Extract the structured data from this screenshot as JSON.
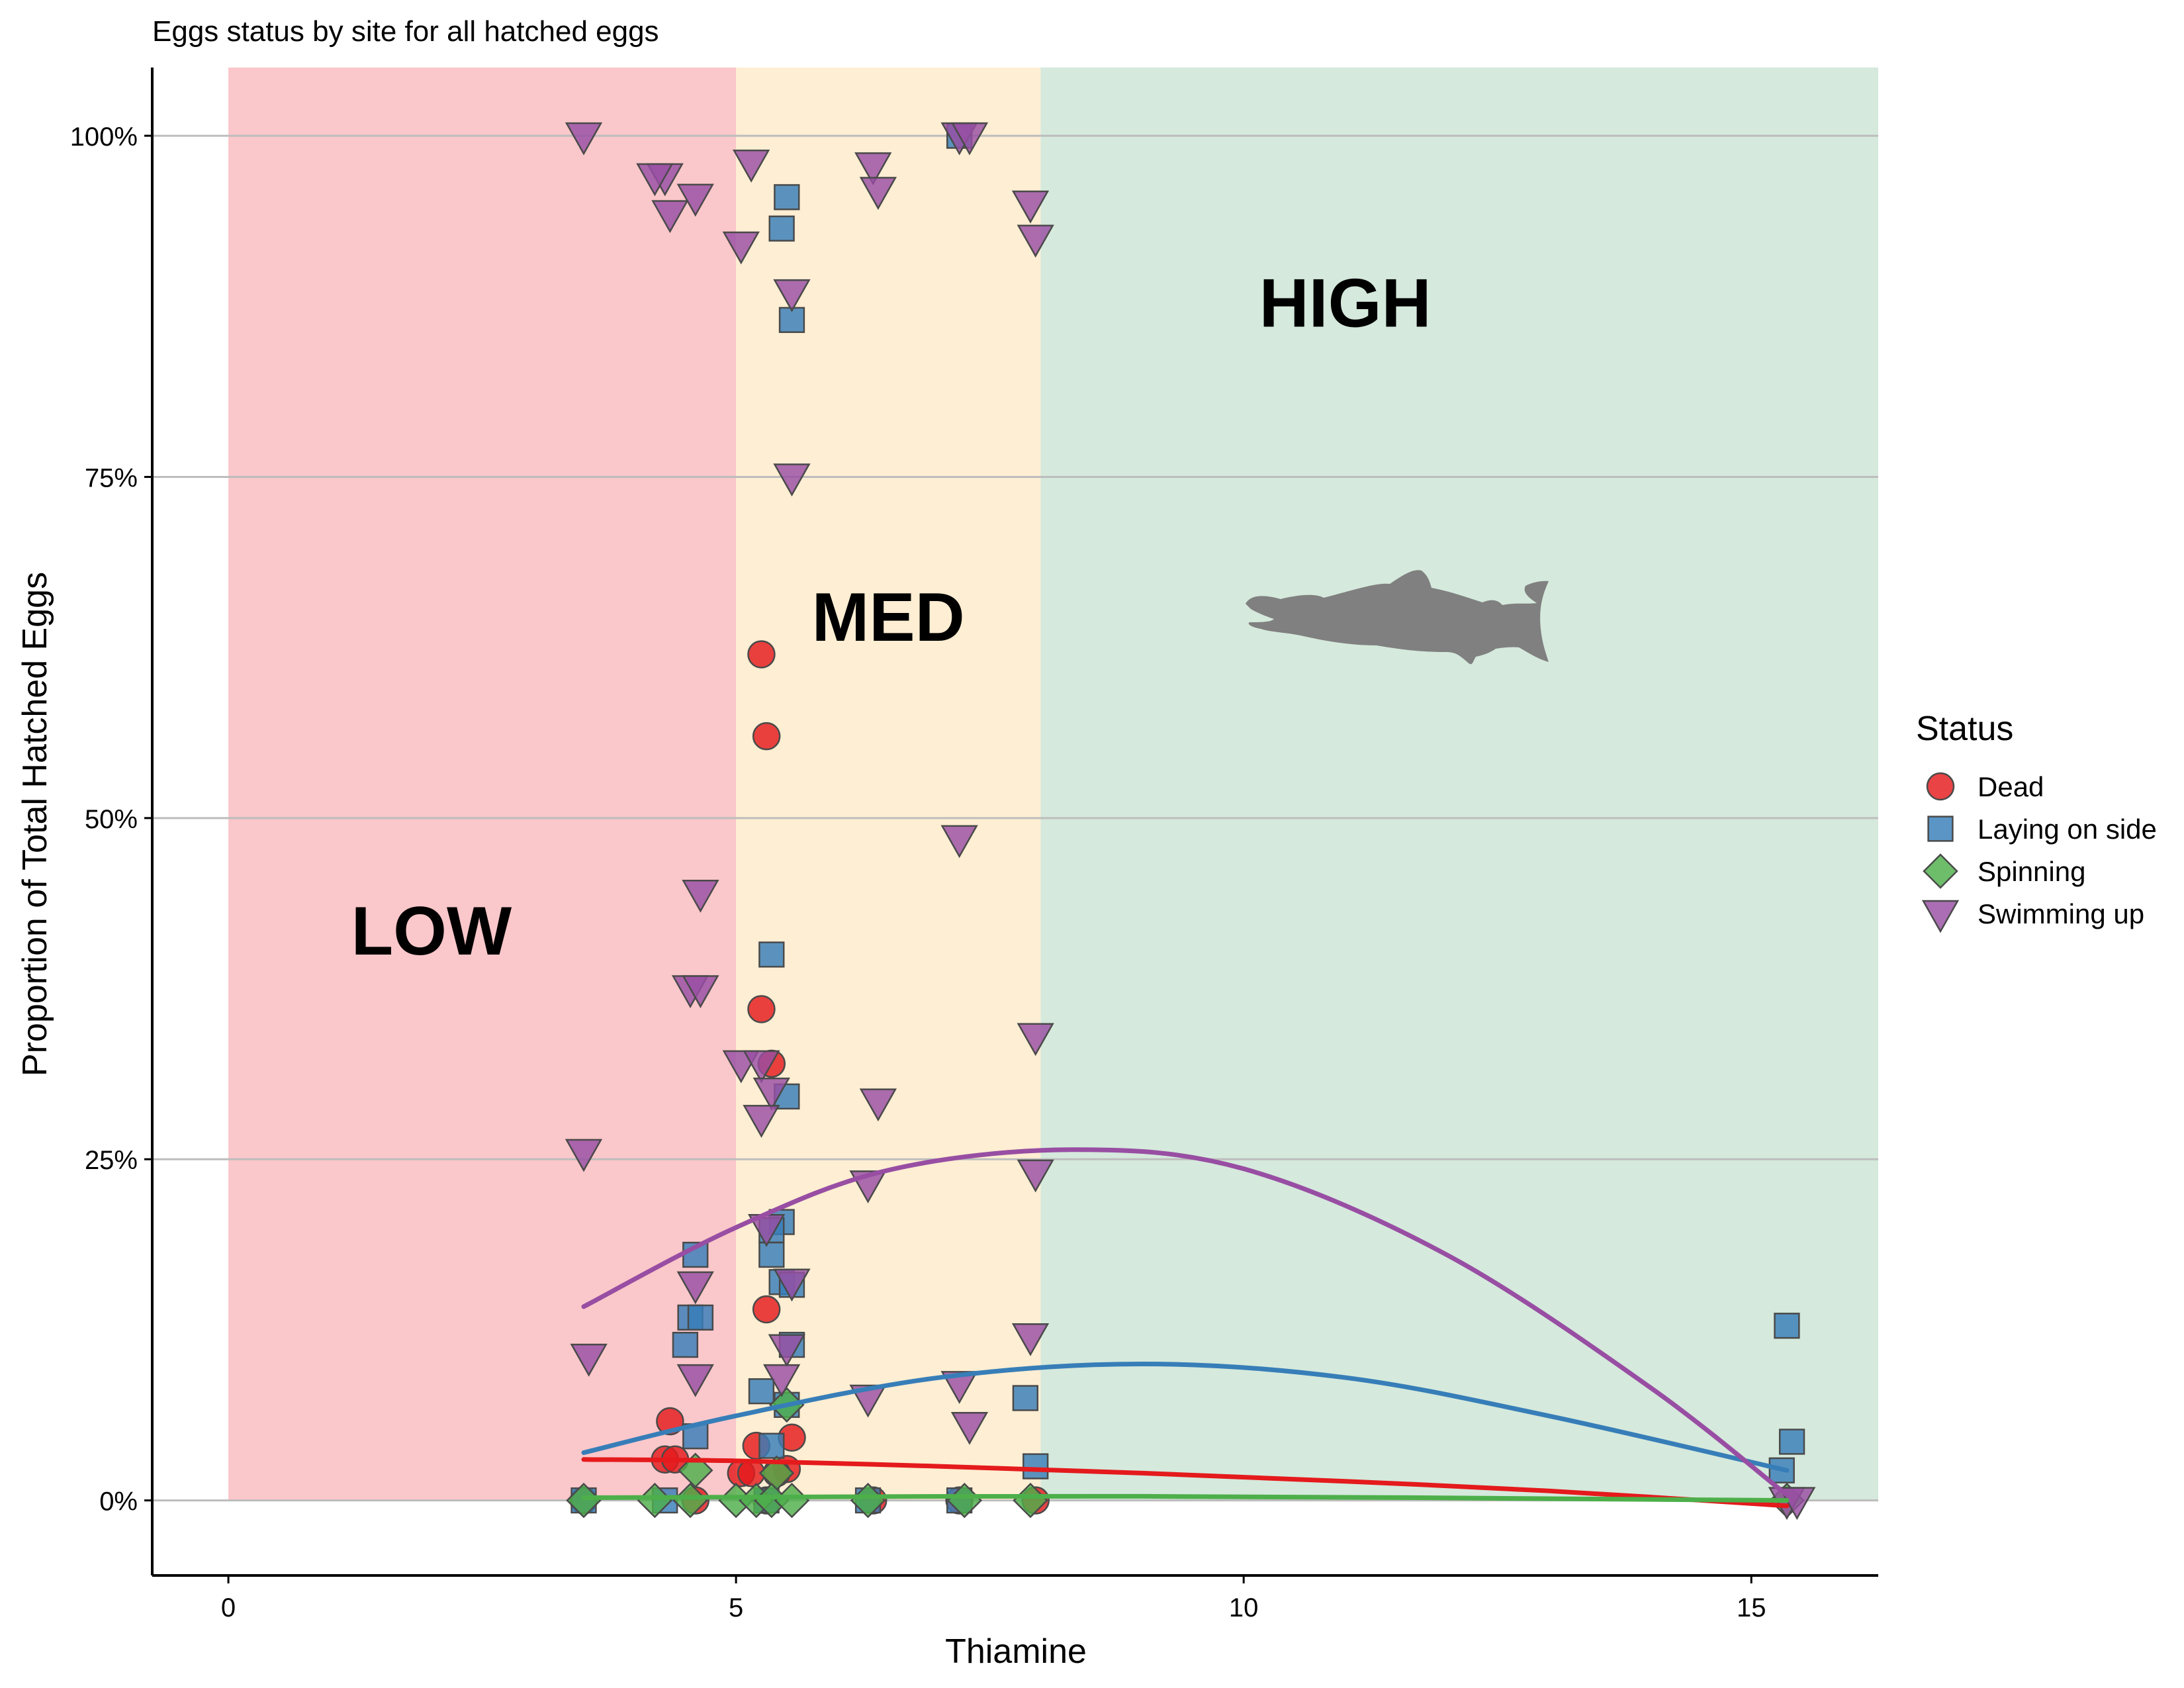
{
  "chart_data": {
    "type": "scatter",
    "title": "Eggs status by site for all hatched eggs",
    "xlabel": "Thiamine",
    "ylabel": "Proportion of Total Hatched Eggs",
    "xlim": [
      -0.75,
      16.25
    ],
    "ylim": [
      -0.055,
      1.05
    ],
    "x_ticks": [
      0,
      5,
      10,
      15
    ],
    "x_tick_labels": [
      "0",
      "5",
      "10",
      "15"
    ],
    "y_ticks": [
      0,
      0.25,
      0.5,
      0.75,
      1.0
    ],
    "y_tick_labels": [
      "0%",
      "25%",
      "50%",
      "75%",
      "100%"
    ],
    "grid": "horizontal major lines",
    "zones": [
      {
        "label": "LOW",
        "x0": 0,
        "x1": 5,
        "fill": "#f7a1a6",
        "text_color": "#d9798c",
        "label_x": 2.0,
        "label_y": 0.4
      },
      {
        "label": "MED",
        "x0": 5,
        "x1": 8,
        "fill": "#fde3b6",
        "text_color": "#f9c374",
        "label_x": 6.5,
        "label_y": 0.63
      },
      {
        "label": "HIGH",
        "x0": 8,
        "x1": 16.25,
        "fill": "#b9dac5",
        "text_color": "#82bd8e",
        "label_x": 11.0,
        "label_y": 0.86
      }
    ],
    "icon": "salmon-fish-icon",
    "legend": {
      "title": "Status",
      "position": "right"
    },
    "series": [
      {
        "name": "Dead",
        "marker": "circle",
        "color": "#e41a1c",
        "points": [
          [
            5.25,
            0.62
          ],
          [
            5.3,
            0.56
          ],
          [
            5.25,
            0.36
          ],
          [
            5.35,
            0.32
          ],
          [
            5.3,
            0.14
          ],
          [
            4.35,
            0.058
          ],
          [
            4.3,
            0.03
          ],
          [
            4.4,
            0.03
          ],
          [
            5.05,
            0.02
          ],
          [
            5.2,
            0.04
          ],
          [
            5.15,
            0.02
          ],
          [
            5.55,
            0.046
          ],
          [
            5.5,
            0.023
          ],
          [
            5.4,
            0.02
          ],
          [
            3.5,
            0.0
          ],
          [
            4.6,
            0.0
          ],
          [
            5.3,
            0.0
          ],
          [
            6.35,
            0.0
          ],
          [
            7.2,
            0.0
          ],
          [
            7.95,
            0.0
          ]
        ],
        "trend": [
          [
            3.5,
            0.03
          ],
          [
            5,
            0.029
          ],
          [
            7,
            0.025
          ],
          [
            9,
            0.02
          ],
          [
            11,
            0.014
          ],
          [
            13,
            0.007
          ],
          [
            15.35,
            -0.004
          ]
        ]
      },
      {
        "name": "Laying on side",
        "marker": "square",
        "color": "#377eb8",
        "points": [
          [
            7.2,
            1.0
          ],
          [
            5.5,
            0.955
          ],
          [
            5.45,
            0.932
          ],
          [
            5.55,
            0.865
          ],
          [
            5.35,
            0.4
          ],
          [
            5.5,
            0.296
          ],
          [
            5.45,
            0.204
          ],
          [
            5.35,
            0.198
          ],
          [
            5.35,
            0.18
          ],
          [
            4.6,
            0.18
          ],
          [
            5.45,
            0.16
          ],
          [
            5.55,
            0.158
          ],
          [
            4.55,
            0.134
          ],
          [
            4.65,
            0.134
          ],
          [
            4.5,
            0.114
          ],
          [
            5.55,
            0.114
          ],
          [
            5.25,
            0.08
          ],
          [
            5.5,
            0.07
          ],
          [
            4.6,
            0.047
          ],
          [
            7.85,
            0.075
          ],
          [
            7.95,
            0.025
          ],
          [
            5.35,
            0.04
          ],
          [
            15.35,
            0.128
          ],
          [
            15.4,
            0.043
          ],
          [
            15.3,
            0.022
          ],
          [
            3.5,
            0.0
          ],
          [
            4.3,
            0.0
          ],
          [
            5.3,
            0.0
          ],
          [
            6.3,
            0.0
          ],
          [
            7.2,
            0.0
          ]
        ],
        "trend": [
          [
            3.5,
            0.035
          ],
          [
            5,
            0.062
          ],
          [
            7,
            0.09
          ],
          [
            9,
            0.1
          ],
          [
            11,
            0.09
          ],
          [
            13,
            0.062
          ],
          [
            15.35,
            0.022
          ]
        ]
      },
      {
        "name": "Spinning",
        "marker": "diamond",
        "color": "#4daf4a",
        "points": [
          [
            4.6,
            0.022
          ],
          [
            5.4,
            0.02
          ],
          [
            5.5,
            0.07
          ],
          [
            3.5,
            0.0
          ],
          [
            4.2,
            0.0
          ],
          [
            4.55,
            0.0
          ],
          [
            5.0,
            0.0
          ],
          [
            5.2,
            0.0
          ],
          [
            5.35,
            0.0
          ],
          [
            5.55,
            0.0
          ],
          [
            6.3,
            0.0
          ],
          [
            7.25,
            0.0
          ],
          [
            7.9,
            0.0
          ],
          [
            15.35,
            0.0
          ]
        ],
        "trend": [
          [
            3.5,
            0.002
          ],
          [
            9,
            0.003
          ],
          [
            15.35,
            0.0
          ]
        ]
      },
      {
        "name": "Swimming up",
        "marker": "triangle-down",
        "color": "#984ea3",
        "points": [
          [
            3.5,
            1.0
          ],
          [
            4.3,
            0.97
          ],
          [
            4.2,
            0.97
          ],
          [
            4.35,
            0.943
          ],
          [
            4.6,
            0.955
          ],
          [
            5.15,
            0.98
          ],
          [
            5.05,
            0.92
          ],
          [
            6.35,
            0.978
          ],
          [
            6.4,
            0.96
          ],
          [
            7.2,
            1.0
          ],
          [
            7.3,
            1.0
          ],
          [
            7.9,
            0.95
          ],
          [
            7.95,
            0.925
          ],
          [
            5.55,
            0.885
          ],
          [
            5.55,
            0.75
          ],
          [
            7.2,
            0.485
          ],
          [
            4.65,
            0.445
          ],
          [
            4.55,
            0.375
          ],
          [
            4.65,
            0.375
          ],
          [
            7.95,
            0.34
          ],
          [
            5.05,
            0.32
          ],
          [
            5.25,
            0.32
          ],
          [
            5.35,
            0.3
          ],
          [
            5.25,
            0.28
          ],
          [
            6.4,
            0.292
          ],
          [
            3.5,
            0.255
          ],
          [
            7.95,
            0.24
          ],
          [
            6.3,
            0.232
          ],
          [
            5.3,
            0.2
          ],
          [
            4.6,
            0.158
          ],
          [
            5.55,
            0.16
          ],
          [
            3.55,
            0.105
          ],
          [
            5.5,
            0.112
          ],
          [
            7.9,
            0.12
          ],
          [
            4.6,
            0.09
          ],
          [
            5.45,
            0.09
          ],
          [
            7.2,
            0.085
          ],
          [
            6.3,
            0.075
          ],
          [
            7.3,
            0.055
          ],
          [
            15.35,
            0.0
          ],
          [
            15.45,
            0.0
          ]
        ],
        "trend": [
          [
            3.5,
            0.142
          ],
          [
            5,
            0.2
          ],
          [
            6.5,
            0.242
          ],
          [
            8.3,
            0.257
          ],
          [
            10,
            0.243
          ],
          [
            12,
            0.18
          ],
          [
            14,
            0.083
          ],
          [
            15.35,
            0.004
          ]
        ]
      }
    ]
  }
}
